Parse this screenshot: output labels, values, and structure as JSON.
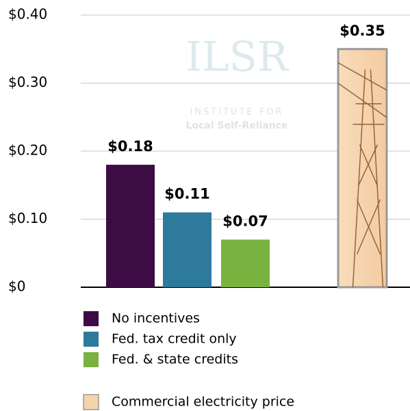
{
  "chart_data": {
    "type": "bar",
    "watermark": {
      "title": "ILSR",
      "line1": "INSTITUTE FOR",
      "line2": "Local Self-Reliance"
    },
    "series": [
      {
        "name": "No incentives",
        "color": "#3d0c45",
        "values": [
          0.18
        ],
        "value_labels": [
          "$0.18"
        ]
      },
      {
        "name": "Fed. tax credit only",
        "color": "#2e7a9a",
        "values": [
          0.11
        ],
        "value_labels": [
          "$0.11"
        ]
      },
      {
        "name": "Fed. & state credits",
        "color": "#7ab23f",
        "values": [
          0.07
        ],
        "value_labels": [
          "$0.07"
        ]
      },
      {
        "name": "Commercial electricity price",
        "color": "#f5d3ad",
        "values": [
          0.35
        ],
        "value_labels": [
          "$0.35"
        ]
      }
    ],
    "ylim": [
      0,
      0.4
    ],
    "yticks": [
      {
        "value": 0,
        "label": "$0"
      },
      {
        "value": 0.1,
        "label": "$0.10"
      },
      {
        "value": 0.2,
        "label": "$0.20"
      },
      {
        "value": 0.3,
        "label": "$0.30"
      },
      {
        "value": 0.4,
        "label": "$0.40"
      }
    ],
    "grid": true
  }
}
